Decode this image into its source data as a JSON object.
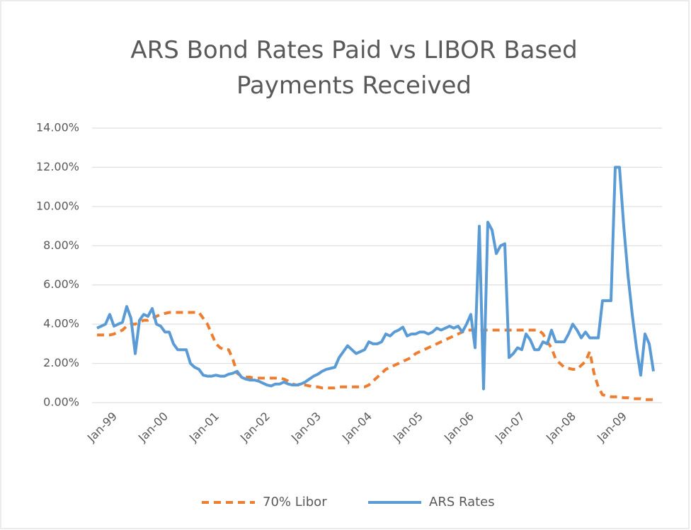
{
  "chart_data": {
    "type": "line",
    "title": "ARS Bond Rates Paid vs LIBOR Based Payments Received",
    "categories": [
      "Jan-99",
      null,
      null,
      null,
      null,
      null,
      null,
      null,
      null,
      null,
      null,
      null,
      "Jan-00",
      null,
      null,
      null,
      null,
      null,
      null,
      null,
      null,
      null,
      null,
      null,
      "Jan-01",
      null,
      null,
      null,
      null,
      null,
      null,
      null,
      null,
      null,
      null,
      null,
      "Jan-02",
      null,
      null,
      null,
      null,
      null,
      null,
      null,
      null,
      null,
      null,
      null,
      "Jan-03",
      null,
      null,
      null,
      null,
      null,
      null,
      null,
      null,
      null,
      null,
      null,
      "Jan-04",
      null,
      null,
      null,
      null,
      null,
      null,
      null,
      null,
      null,
      null,
      null,
      "Jan-05",
      null,
      null,
      null,
      null,
      null,
      null,
      null,
      null,
      null,
      null,
      null,
      "Jan-06",
      null,
      null,
      null,
      null,
      null,
      null,
      null,
      null,
      null,
      null,
      null,
      "Jan-07",
      null,
      null,
      null,
      null,
      null,
      null,
      null,
      null,
      null,
      null,
      null,
      "Jan-08",
      null,
      null,
      null,
      null,
      null,
      null,
      null,
      null,
      null,
      null,
      null,
      "Jan-09",
      null,
      null,
      null,
      null,
      null,
      null,
      null,
      null,
      null,
      null,
      null
    ],
    "series": [
      {
        "name": "70% Libor",
        "color": "#ed7d31",
        "dashed": true,
        "values": [
          3.45,
          3.45,
          3.45,
          3.45,
          3.5,
          3.6,
          3.7,
          3.9,
          4.0,
          4.0,
          4.1,
          4.2,
          4.2,
          4.3,
          4.4,
          4.5,
          4.55,
          4.6,
          4.6,
          4.6,
          4.6,
          4.6,
          4.6,
          4.6,
          4.6,
          4.3,
          4.0,
          3.5,
          3.0,
          2.8,
          2.7,
          2.7,
          2.2,
          1.5,
          1.35,
          1.3,
          1.3,
          1.25,
          1.25,
          1.25,
          1.25,
          1.25,
          1.25,
          1.25,
          1.2,
          1.1,
          0.95,
          0.9,
          0.9,
          0.9,
          0.85,
          0.8,
          0.8,
          0.75,
          0.75,
          0.75,
          0.75,
          0.8,
          0.8,
          0.8,
          0.8,
          0.8,
          0.8,
          0.8,
          0.9,
          1.1,
          1.3,
          1.5,
          1.7,
          1.8,
          1.9,
          2.0,
          2.1,
          2.2,
          2.3,
          2.5,
          2.6,
          2.7,
          2.8,
          2.9,
          3.0,
          3.1,
          3.2,
          3.3,
          3.4,
          3.5,
          3.6,
          3.7,
          3.7,
          3.7,
          3.7,
          3.7,
          3.7,
          3.7,
          3.7,
          3.7,
          3.7,
          3.7,
          3.7,
          3.7,
          3.7,
          3.7,
          3.7,
          3.7,
          3.7,
          3.5,
          3.1,
          2.8,
          2.2,
          2.0,
          1.8,
          1.75,
          1.7,
          1.7,
          1.9,
          2.1,
          2.6,
          1.5,
          0.8,
          0.4,
          0.35,
          0.3,
          0.3,
          0.3,
          0.25,
          0.25,
          0.2,
          0.2,
          0.2,
          0.15,
          0.15,
          0.15
        ]
      },
      {
        "name": "ARS Rates",
        "color": "#5b9bd5",
        "dashed": false,
        "values": [
          3.8,
          3.9,
          4.0,
          4.5,
          3.9,
          4.0,
          4.1,
          4.9,
          4.3,
          2.5,
          4.2,
          4.5,
          4.4,
          4.8,
          4.0,
          3.9,
          3.6,
          3.6,
          3.0,
          2.7,
          2.7,
          2.7,
          2.0,
          1.8,
          1.7,
          1.4,
          1.35,
          1.35,
          1.4,
          1.35,
          1.35,
          1.45,
          1.5,
          1.6,
          1.3,
          1.2,
          1.15,
          1.15,
          1.1,
          1.0,
          0.9,
          0.85,
          0.95,
          0.95,
          1.05,
          0.95,
          0.9,
          0.9,
          0.95,
          1.05,
          1.2,
          1.35,
          1.45,
          1.6,
          1.7,
          1.75,
          1.8,
          2.3,
          2.6,
          2.9,
          2.7,
          2.5,
          2.6,
          2.7,
          3.1,
          3.0,
          3.0,
          3.1,
          3.5,
          3.4,
          3.6,
          3.7,
          3.85,
          3.4,
          3.5,
          3.5,
          3.6,
          3.6,
          3.5,
          3.6,
          3.8,
          3.7,
          3.8,
          3.9,
          3.8,
          3.9,
          3.6,
          4.0,
          4.5,
          2.8,
          9.0,
          0.7,
          9.2,
          8.8,
          7.6,
          8.0,
          8.1,
          2.3,
          2.5,
          2.8,
          2.7,
          3.5,
          3.2,
          2.7,
          2.7,
          3.1,
          3.0,
          3.7,
          3.1,
          3.1,
          3.1,
          3.5,
          4.0,
          3.7,
          3.3,
          3.6,
          3.3,
          3.3,
          3.3,
          5.2,
          5.2,
          5.2,
          12.0,
          12.0,
          9.0,
          6.5,
          4.5,
          2.8,
          1.4,
          3.5,
          3.0,
          1.6
        ]
      }
    ],
    "ylim": [
      0,
      14
    ],
    "yticks": [
      {
        "value": 0,
        "label": "0.00%"
      },
      {
        "value": 2,
        "label": "2.00%"
      },
      {
        "value": 4,
        "label": "4.00%"
      },
      {
        "value": 6,
        "label": "6.00%"
      },
      {
        "value": 8,
        "label": "8.00%"
      },
      {
        "value": 10,
        "label": "10.00%"
      },
      {
        "value": 12,
        "label": "12.00%"
      },
      {
        "value": 14,
        "label": "14.00%"
      }
    ],
    "grid": true,
    "legend": "bottom"
  }
}
